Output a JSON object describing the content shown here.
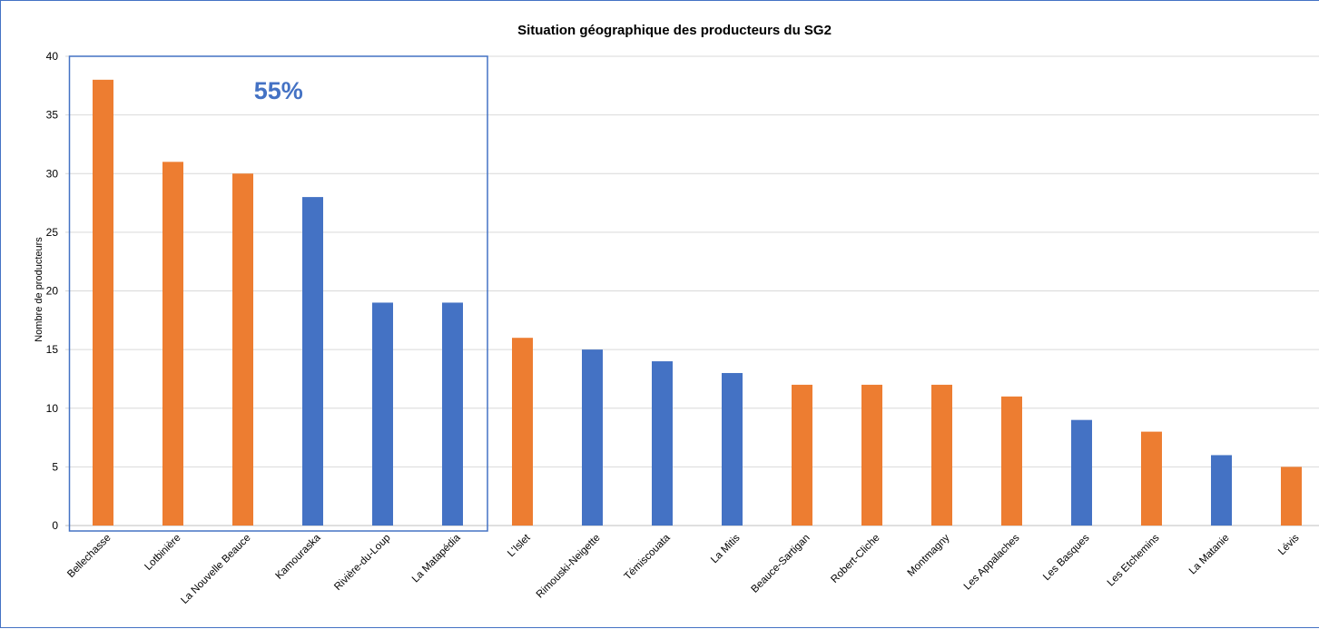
{
  "chart_data": {
    "type": "bar",
    "title": "Situation géographique des producteurs du SG2",
    "xlabel": "",
    "ylabel": "Nombre de producteurs",
    "ylim": [
      0,
      40
    ],
    "yticks": [
      0,
      5,
      10,
      15,
      20,
      25,
      30,
      35,
      40
    ],
    "grid": true,
    "legend": "none",
    "categories": [
      "Bellechasse",
      "Lotbinière",
      "La Nouvelle Beauce",
      "Kamouraska",
      "Rivière-du-Loup",
      "La Matapédia",
      "L'Islet",
      "Rimouski-Neigette",
      "Témiscouata",
      "La Mitis",
      "Beauce-Sartigan",
      "Robert-Cliche",
      "Montmagny",
      "Les Appalaches",
      "Les Basques",
      "Les Etchemins",
      "La Matanie",
      "Lévis"
    ],
    "values": [
      38,
      31,
      30,
      28,
      19,
      19,
      16,
      15,
      14,
      13,
      12,
      12,
      12,
      11,
      9,
      8,
      6,
      5
    ],
    "bar_colors": [
      "#ed7d31",
      "#ed7d31",
      "#ed7d31",
      "#4472c4",
      "#4472c4",
      "#4472c4",
      "#ed7d31",
      "#4472c4",
      "#4472c4",
      "#4472c4",
      "#ed7d31",
      "#ed7d31",
      "#ed7d31",
      "#ed7d31",
      "#4472c4",
      "#ed7d31",
      "#4472c4",
      "#ed7d31"
    ],
    "annotation": {
      "text": "55%",
      "color": "#4472c4",
      "box_first_category": 0,
      "box_last_category": 5
    }
  },
  "colors": {
    "orange": "#ed7d31",
    "blue": "#4472c4",
    "grid": "#d9d9d9",
    "axis": "#bfbfbf"
  }
}
